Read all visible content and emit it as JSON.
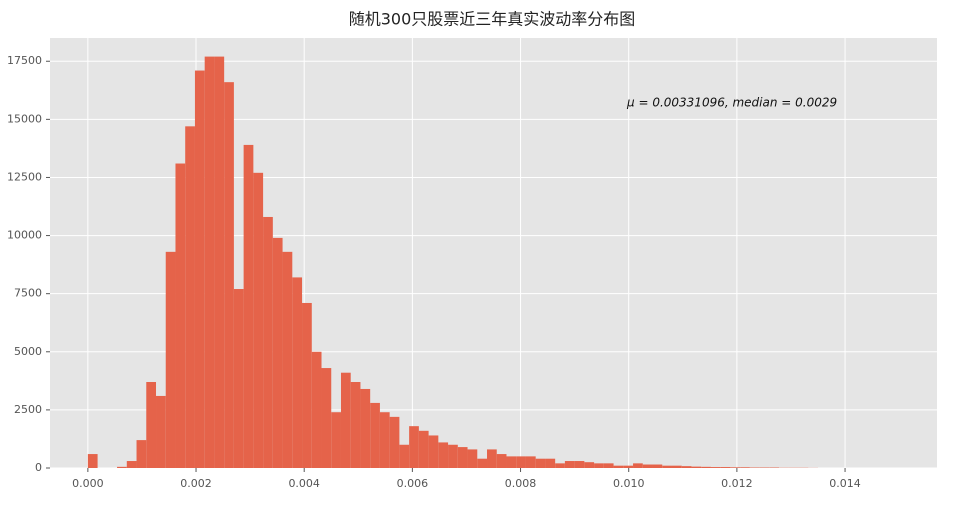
{
  "chart_data": {
    "type": "histogram",
    "title": "随机300只股票近三年真实波动率分布图",
    "annotation": "μ = 0.00331096, median = 0.0029",
    "color": "#e5634a",
    "bins": [
      0,
      0.00018,
      0.00036,
      0.00054,
      0.00072,
      0.0009,
      0.00108,
      0.00126,
      0.00144,
      0.00162,
      0.0018,
      0.00198,
      0.00216,
      0.00234,
      0.00252,
      0.0027,
      0.00288,
      0.00306,
      0.00324,
      0.00342,
      0.0036,
      0.00378,
      0.00396,
      0.00414,
      0.00432,
      0.0045,
      0.00468,
      0.00486,
      0.00504,
      0.00522,
      0.0054,
      0.00558,
      0.00576,
      0.00594,
      0.00612,
      0.0063,
      0.00648,
      0.00666,
      0.00684,
      0.00702,
      0.0072,
      0.00738,
      0.00756,
      0.00774,
      0.00792,
      0.0081,
      0.00828,
      0.00846,
      0.00864,
      0.00882,
      0.009,
      0.00918,
      0.00936,
      0.00954,
      0.00972,
      0.0099,
      0.01008,
      0.01026,
      0.01044,
      0.01062,
      0.0108,
      0.01098,
      0.01116,
      0.01134,
      0.01152,
      0.0117,
      0.01188,
      0.01206,
      0.01224,
      0.01242,
      0.0126,
      0.01278,
      0.01296,
      0.01314,
      0.01332,
      0.0135
    ],
    "counts": [
      600,
      0,
      0,
      50,
      300,
      1200,
      3700,
      3100,
      9300,
      13100,
      14700,
      17100,
      17700,
      17700,
      16600,
      7700,
      13900,
      12700,
      10800,
      9900,
      9300,
      8200,
      7100,
      5000,
      4300,
      2400,
      4100,
      3700,
      3400,
      2800,
      2400,
      2200,
      1000,
      1800,
      1600,
      1400,
      1100,
      1000,
      900,
      800,
      400,
      800,
      600,
      500,
      500,
      500,
      400,
      400,
      200,
      300,
      300,
      250,
      200,
      200,
      100,
      100,
      200,
      150,
      150,
      100,
      100,
      80,
      60,
      50,
      40,
      40,
      30,
      30,
      20,
      20,
      20,
      10,
      10,
      10,
      5
    ],
    "xlim": [
      -0.0007,
      0.0157
    ],
    "ylim": [
      0,
      18500
    ],
    "xticks": [
      {
        "value": 0,
        "label": "0.000"
      },
      {
        "value": 0.002,
        "label": "0.002"
      },
      {
        "value": 0.004,
        "label": "0.004"
      },
      {
        "value": 0.006,
        "label": "0.006"
      },
      {
        "value": 0.008,
        "label": "0.008"
      },
      {
        "value": 0.01,
        "label": "0.010"
      },
      {
        "value": 0.012,
        "label": "0.012"
      },
      {
        "value": 0.014,
        "label": "0.014"
      }
    ],
    "yticks": [
      0,
      2500,
      5000,
      7500,
      10000,
      12500,
      15000,
      17500
    ],
    "grid": true
  }
}
